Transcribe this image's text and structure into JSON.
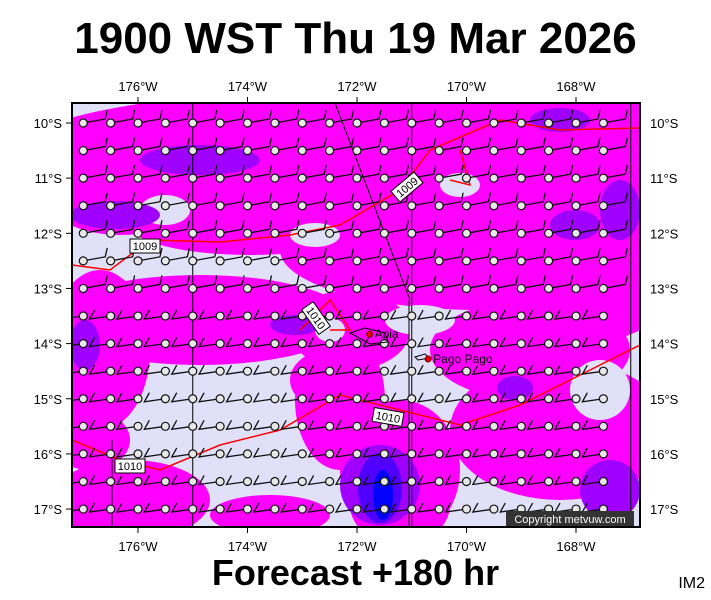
{
  "title": "1900 WST Thu 19 Mar 2026",
  "footer": "Forecast +180 hr",
  "image_code": "IM2",
  "copyright": "Copyright metvuw.com",
  "lon_labels": [
    "176°W",
    "174°W",
    "172°W",
    "170°W",
    "168°W"
  ],
  "lat_labels": [
    "10°S",
    "11°S",
    "12°S",
    "13°S",
    "14°S",
    "15°S",
    "16°S",
    "17°S"
  ],
  "places": [
    {
      "name": "Apia",
      "lon": -171.77,
      "lat": -13.83
    },
    {
      "name": "Pago Pago",
      "lon": -170.7,
      "lat": -14.28
    }
  ],
  "isobar_labels": [
    "1009",
    "1009",
    "1010",
    "1010",
    "1010"
  ],
  "colors": {
    "background": "#e0e0f8",
    "rain_light": "#ff00ff",
    "rain_mod": "#a000ff",
    "rain_heavy": "#0000ff",
    "isobar": "#ff0000"
  },
  "region": {
    "lon_min": -177.3,
    "lon_max": -166.9,
    "lat_min": -17.3,
    "lat_max": -9.6
  }
}
